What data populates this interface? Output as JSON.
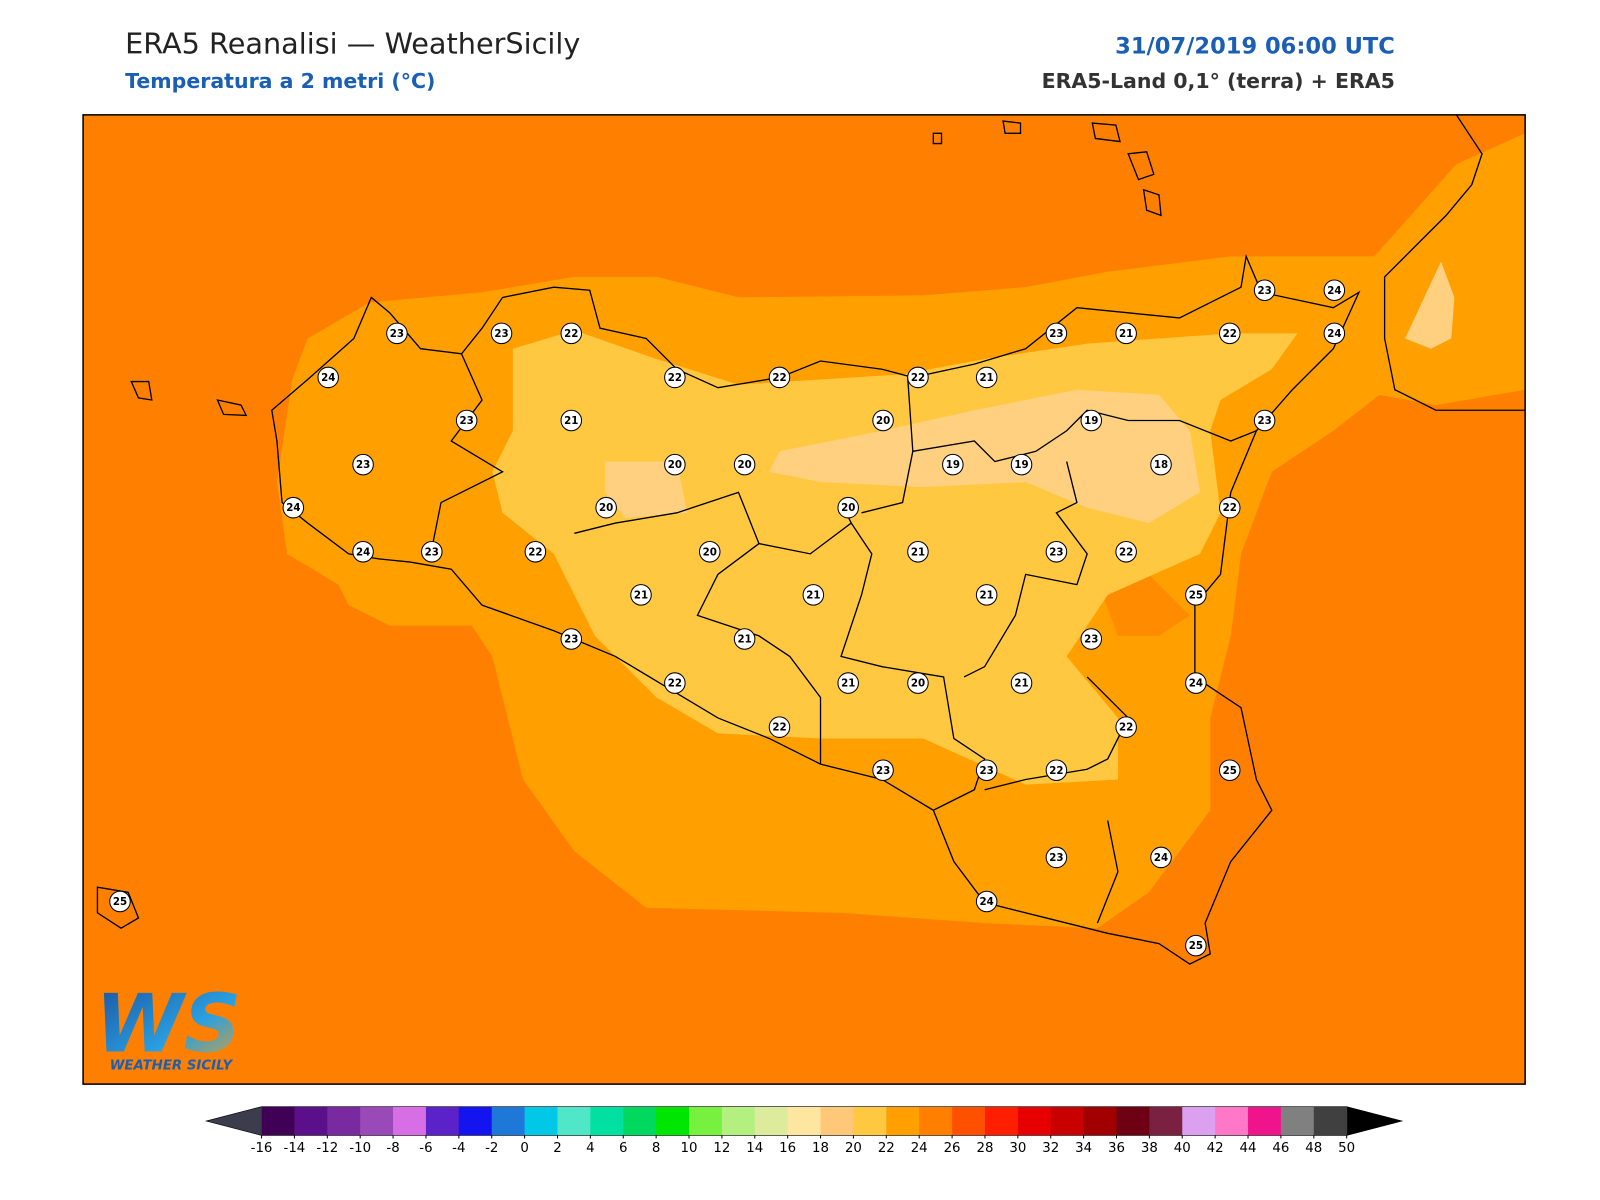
{
  "header": {
    "title": "ERA5 Reanalisi — WeatherSicily",
    "subtitle": "Temperatura a 2 metri (°C)",
    "datetime": "31/07/2019 06:00 UTC",
    "source": "ERA5-Land 0,1° (terra) + ERA5"
  },
  "map": {
    "stations": [
      23,
      23,
      22,
      24,
      22,
      22,
      22,
      21,
      23,
      21,
      22,
      23,
      24,
      24,
      23,
      21,
      20,
      19,
      23,
      23,
      20,
      20,
      19,
      19,
      18,
      24,
      20,
      20,
      22,
      24,
      23,
      22,
      20,
      21,
      23,
      22,
      21,
      21,
      21,
      25,
      23,
      21,
      23,
      22,
      21,
      20,
      21,
      24,
      22,
      22,
      23,
      23,
      22,
      25,
      23,
      24,
      24,
      25,
      25
    ]
  },
  "colorbar": {
    "ticks": [
      -16,
      -14,
      -12,
      -10,
      -8,
      -6,
      -4,
      -2,
      0,
      2,
      4,
      6,
      8,
      10,
      12,
      14,
      16,
      18,
      20,
      22,
      24,
      26,
      28,
      30,
      32,
      34,
      36,
      38,
      40,
      42,
      44,
      46,
      48,
      50
    ],
    "colors": [
      "#3f0055",
      "#5c0f8a",
      "#7a2aa0",
      "#9a4ab8",
      "#d86ee6",
      "#5a22c8",
      "#1414f0",
      "#1e78d8",
      "#00c8e6",
      "#50e6c8",
      "#00e0a0",
      "#00d860",
      "#00e600",
      "#78f040",
      "#b4f080",
      "#dcec9c",
      "#ffe6a0",
      "#ffc878",
      "#ffc840",
      "#ffa000",
      "#ff8000",
      "#ff5000",
      "#ff1e00",
      "#e60000",
      "#c80000",
      "#a00000",
      "#6e0014",
      "#7a2040",
      "#dca0f0",
      "#ff78c8",
      "#f0148c",
      "#808080",
      "#404040"
    ],
    "under_color": "#3c3c4c",
    "over_color": "#000000"
  },
  "logo": {
    "mark": "WS",
    "name": "WEATHER SICILY"
  }
}
